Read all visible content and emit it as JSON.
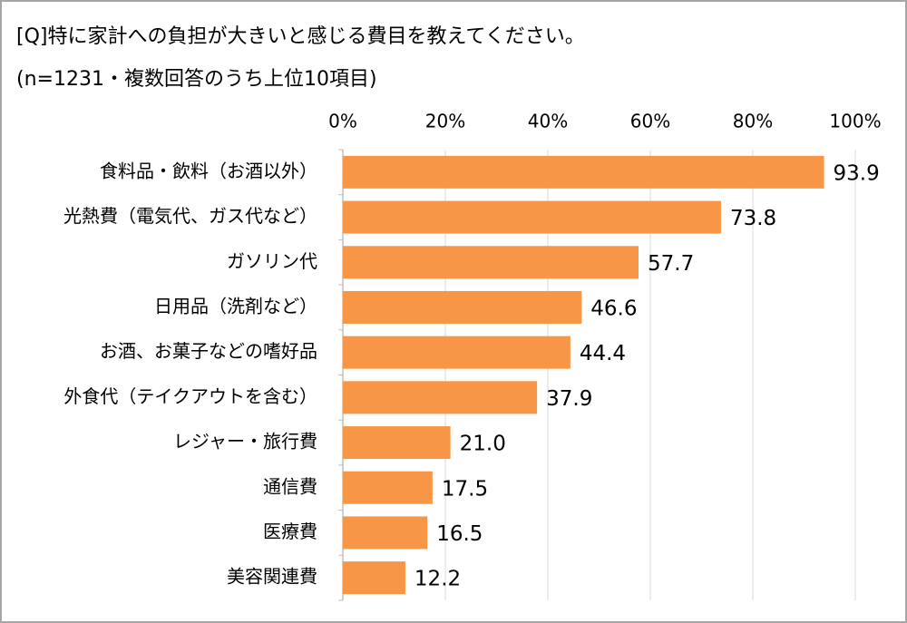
{
  "chart_data": {
    "type": "bar",
    "orientation": "horizontal",
    "title": "[Q]特に家計への負担が大きいと感じる費目を教えてください。",
    "subtitle": "(n=1231・複数回答のうち上位10項目)",
    "categories": [
      "食料品・飲料（お酒以外）",
      "光熱費（電気代、ガス代など）",
      "ガソリン代",
      "日用品（洗剤など）",
      "お酒、お菓子などの嗜好品",
      "外食代（テイクアウトを含む）",
      "レジャー・旅行費",
      "通信費",
      "医療費",
      "美容関連費"
    ],
    "values": [
      93.9,
      73.8,
      57.7,
      46.6,
      44.4,
      37.9,
      21.0,
      17.5,
      16.5,
      12.2
    ],
    "value_labels": [
      "93.9",
      "73.8",
      "57.7",
      "46.6",
      "44.4",
      "37.9",
      "21.0",
      "17.5",
      "16.5",
      "12.2"
    ],
    "color": "#f79646",
    "xlim": [
      0,
      100
    ],
    "xticks": [
      {
        "value": 0,
        "label": "0%"
      },
      {
        "value": 20,
        "label": "20%"
      },
      {
        "value": 40,
        "label": "40%"
      },
      {
        "value": 60,
        "label": "60%"
      },
      {
        "value": 80,
        "label": "80%"
      },
      {
        "value": 100,
        "label": "100%"
      }
    ],
    "grid": true
  }
}
